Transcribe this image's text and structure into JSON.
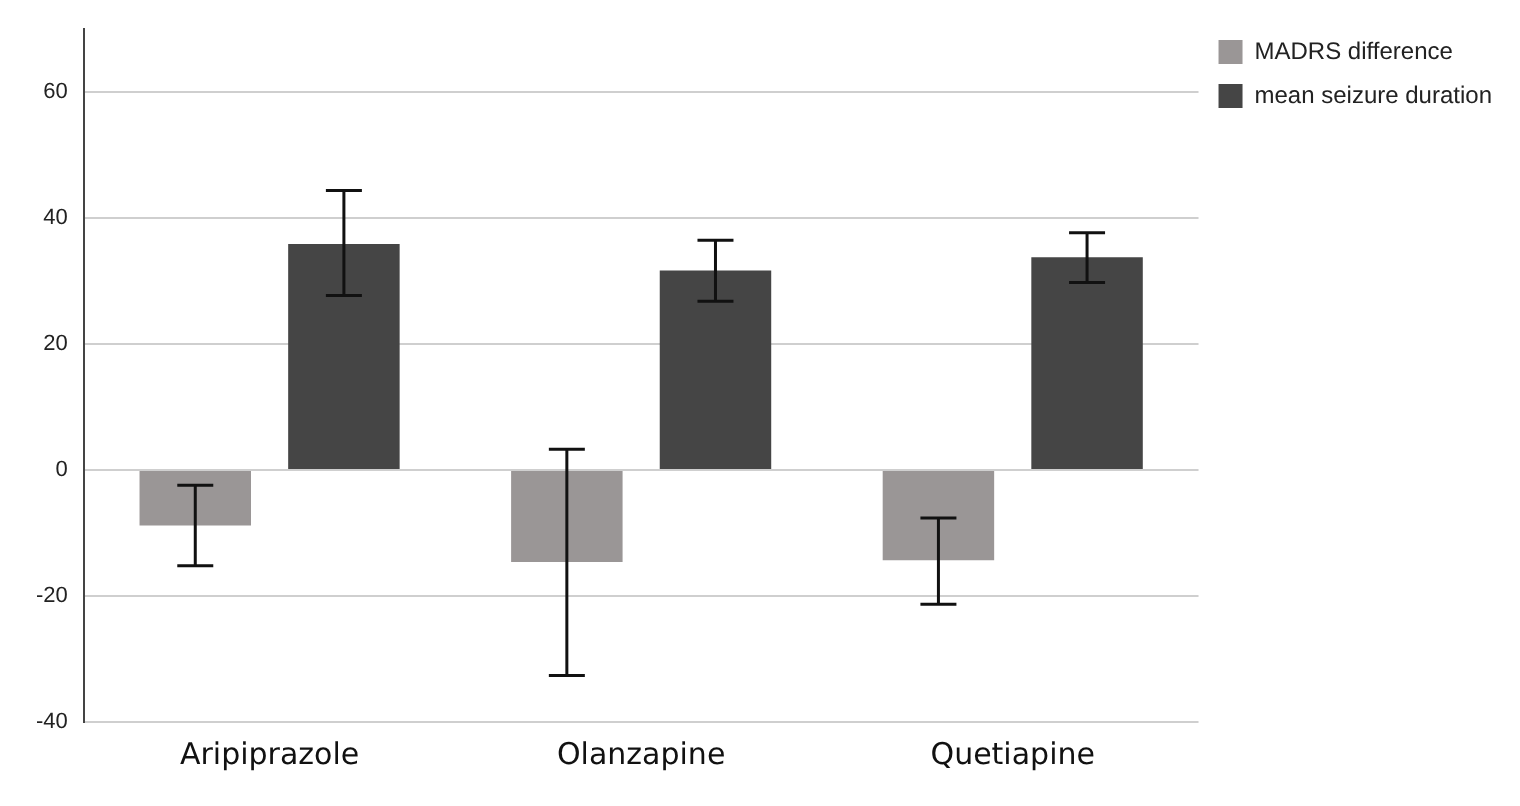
{
  "chart_data": {
    "type": "bar",
    "categories": [
      "Aripiprazole",
      "Olanzapine",
      "Quetiapine"
    ],
    "series": [
      {
        "name": "MADRS difference",
        "color": "#9a9696",
        "values": [
          -8.8,
          -14.6,
          -14.3
        ],
        "errors": [
          [
            -15.2,
            -2.4
          ],
          [
            -32.6,
            3.3
          ],
          [
            -21.3,
            -7.6
          ]
        ]
      },
      {
        "name": "mean seizure duration",
        "color": "#454545",
        "values": [
          35.9,
          31.7,
          33.8
        ],
        "errors": [
          [
            27.7,
            44.4
          ],
          [
            26.8,
            36.5
          ],
          [
            29.8,
            37.7
          ]
        ]
      }
    ],
    "ylim": [
      -40,
      70
    ],
    "yticks": [
      -40,
      -20,
      0,
      20,
      40,
      60
    ],
    "grid": "y",
    "legend": "top right"
  }
}
